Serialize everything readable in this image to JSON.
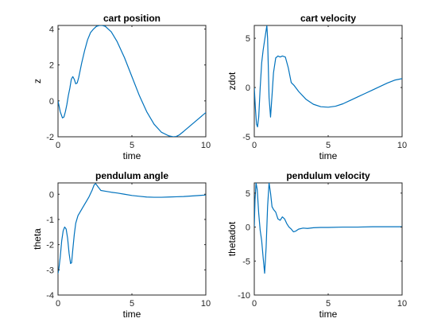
{
  "chart_data": [
    {
      "type": "line",
      "title": "cart position",
      "xlabel": "time",
      "ylabel": "z",
      "xlim": [
        0,
        10
      ],
      "ylim": [
        -2,
        4.2
      ],
      "xticks": [
        0,
        5,
        10
      ],
      "yticks": [
        -2,
        0,
        2,
        4
      ],
      "color": "#0072BD",
      "x": [
        0,
        0.15,
        0.3,
        0.4,
        0.5,
        0.6,
        0.7,
        0.8,
        0.9,
        1.0,
        1.1,
        1.2,
        1.3,
        1.4,
        1.5,
        1.6,
        1.8,
        2.0,
        2.2,
        2.4,
        2.6,
        2.8,
        3.0,
        3.2,
        3.4,
        3.6,
        4.0,
        4.5,
        5.0,
        5.5,
        6.0,
        6.5,
        7.0,
        7.5,
        7.8,
        8.0,
        8.2,
        8.5,
        9.0,
        9.5,
        10.0
      ],
      "y": [
        0,
        -0.6,
        -0.95,
        -0.9,
        -0.6,
        -0.2,
        0.3,
        0.7,
        1.2,
        1.35,
        1.2,
        0.95,
        1.0,
        1.3,
        1.7,
        2.1,
        2.8,
        3.4,
        3.8,
        4.0,
        4.15,
        4.2,
        4.2,
        4.15,
        4.0,
        3.85,
        3.3,
        2.4,
        1.35,
        0.3,
        -0.6,
        -1.3,
        -1.75,
        -1.95,
        -2.0,
        -1.98,
        -1.9,
        -1.7,
        -1.35,
        -1.0,
        -0.65
      ]
    },
    {
      "type": "line",
      "title": "cart velocity",
      "xlabel": "time",
      "ylabel": "zdot",
      "xlim": [
        0,
        10
      ],
      "ylim": [
        -5,
        6.3
      ],
      "xticks": [
        0,
        5,
        10
      ],
      "yticks": [
        -5,
        0,
        5
      ],
      "color": "#0072BD",
      "x": [
        0,
        0.08,
        0.15,
        0.22,
        0.3,
        0.4,
        0.5,
        0.6,
        0.7,
        0.8,
        0.85,
        0.9,
        1.0,
        1.1,
        1.2,
        1.3,
        1.45,
        1.6,
        1.75,
        1.9,
        2.1,
        2.3,
        2.5,
        2.7,
        3.0,
        3.5,
        4.0,
        4.5,
        5.0,
        5.5,
        6.0,
        6.5,
        7.0,
        7.5,
        8.0,
        8.5,
        9.0,
        9.5,
        10.0
      ],
      "y": [
        0,
        -2.2,
        -3.7,
        -4.0,
        -3.0,
        0.0,
        2.5,
        3.8,
        4.8,
        5.8,
        6.3,
        5.0,
        -1.0,
        -3.0,
        -0.8,
        1.5,
        3.0,
        3.2,
        3.1,
        3.2,
        3.1,
        2.0,
        0.5,
        0.2,
        -0.4,
        -1.2,
        -1.7,
        -1.95,
        -2.0,
        -1.9,
        -1.65,
        -1.3,
        -0.95,
        -0.6,
        -0.25,
        0.1,
        0.45,
        0.75,
        0.9
      ]
    },
    {
      "type": "line",
      "title": "pendulum angle",
      "xlabel": "time",
      "ylabel": "theta",
      "xlim": [
        0,
        10
      ],
      "ylim": [
        -4,
        0.45
      ],
      "xticks": [
        0,
        5,
        10
      ],
      "yticks": [
        -4,
        -3,
        -2,
        -1,
        0
      ],
      "color": "#0072BD",
      "x": [
        0,
        0.05,
        0.15,
        0.25,
        0.35,
        0.45,
        0.55,
        0.65,
        0.75,
        0.85,
        0.92,
        1.0,
        1.1,
        1.2,
        1.35,
        1.5,
        1.7,
        1.9,
        2.1,
        2.3,
        2.45,
        2.55,
        2.7,
        2.9,
        3.2,
        3.6,
        4.0,
        4.5,
        5.0,
        5.5,
        6.0,
        6.5,
        7.0,
        7.5,
        8.0,
        8.5,
        9.0,
        9.5,
        10.0
      ],
      "y": [
        -3.14,
        -3.0,
        -2.5,
        -1.85,
        -1.45,
        -1.3,
        -1.38,
        -1.75,
        -2.35,
        -2.75,
        -2.72,
        -2.2,
        -1.6,
        -1.15,
        -0.85,
        -0.7,
        -0.5,
        -0.3,
        -0.1,
        0.15,
        0.38,
        0.42,
        0.3,
        0.15,
        0.12,
        0.08,
        0.05,
        0.0,
        -0.05,
        -0.08,
        -0.11,
        -0.12,
        -0.12,
        -0.11,
        -0.1,
        -0.09,
        -0.07,
        -0.05,
        -0.03
      ]
    },
    {
      "type": "line",
      "title": "pendulum velocity",
      "xlabel": "time",
      "ylabel": "thetadot",
      "xlim": [
        0,
        10
      ],
      "ylim": [
        -10,
        6.5
      ],
      "xticks": [
        0,
        5,
        10
      ],
      "yticks": [
        -10,
        -5,
        0,
        5
      ],
      "color": "#0072BD",
      "x": [
        0,
        0.05,
        0.12,
        0.2,
        0.3,
        0.4,
        0.5,
        0.6,
        0.7,
        0.8,
        0.9,
        1.0,
        1.1,
        1.2,
        1.3,
        1.45,
        1.6,
        1.75,
        1.9,
        2.05,
        2.2,
        2.35,
        2.5,
        2.65,
        2.8,
        3.0,
        3.3,
        3.6,
        4.0,
        4.5,
        5.0,
        6.0,
        7.0,
        8.0,
        9.0,
        10.0
      ],
      "y": [
        0,
        4.0,
        6.5,
        5.5,
        2.0,
        -0.5,
        -2.0,
        -4.5,
        -6.8,
        -3.0,
        3.0,
        6.5,
        5.0,
        3.0,
        2.6,
        2.2,
        1.2,
        1.0,
        1.5,
        1.2,
        0.5,
        0.0,
        -0.3,
        -0.7,
        -0.6,
        -0.3,
        -0.15,
        -0.2,
        -0.1,
        -0.05,
        -0.05,
        0.0,
        0.0,
        0.05,
        0.05,
        0.05
      ]
    }
  ]
}
